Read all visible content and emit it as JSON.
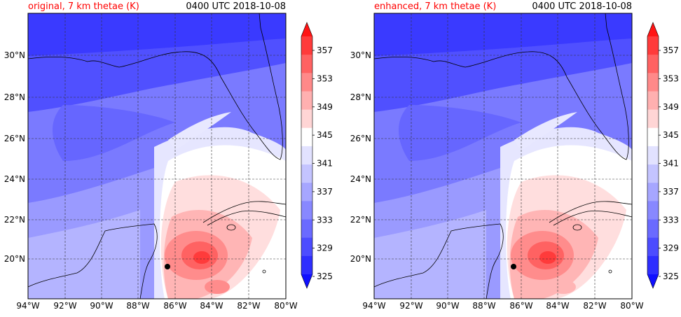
{
  "panels": [
    {
      "id": "left",
      "title_left": "original, 7 km thetae (K)",
      "title_right": "0400 UTC 2018-10-08"
    },
    {
      "id": "right",
      "title_left": "enhanced, 7 km thetae (K)",
      "title_right": "0400 UTC 2018-10-08"
    }
  ],
  "lat_labels": [
    "30°N",
    "28°N",
    "26°N",
    "24°N",
    "22°N",
    "20°N"
  ],
  "lon_labels": [
    "94°W",
    "92°W",
    "90°W",
    "88°W",
    "86°W",
    "84°W",
    "82°W",
    "80°W"
  ],
  "colorbar": {
    "labels": [
      "357",
      "353",
      "349",
      "345",
      "341",
      "337",
      "333",
      "329",
      "325"
    ],
    "colors": [
      "#ff1414",
      "#ff3b3b",
      "#ff6262",
      "#ff8989",
      "#ffb0b0",
      "#ffd5d5",
      "#ffffff",
      "#e2e2ff",
      "#c4c4ff",
      "#a6a6ff",
      "#8888ff",
      "#6a6aff",
      "#4c4cff",
      "#2e2eff",
      "#1010ff"
    ]
  },
  "colors": {
    "title_accent": "#ff0000",
    "storm_marker": "#000000"
  }
}
